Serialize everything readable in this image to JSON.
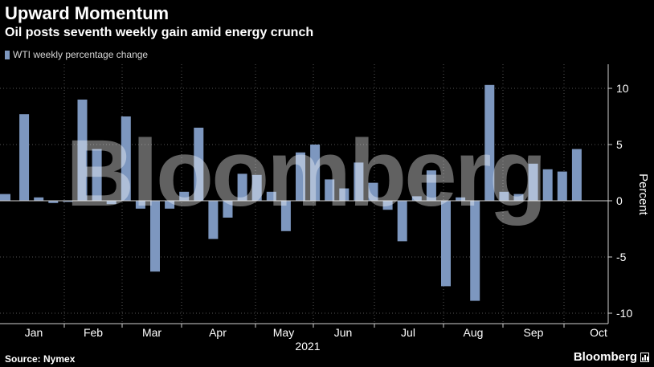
{
  "header": {
    "title": "Upward Momentum",
    "subtitle": "Oil posts seventh weekly gain amid energy crunch"
  },
  "legend": {
    "label": "WTI weekly percentage change"
  },
  "footer": {
    "source": "Source: Nymex",
    "brand": "Bloomberg"
  },
  "watermark": "Bloomberg",
  "colors": {
    "bar": "#7d97bf",
    "background": "#000000",
    "grid": "#555555"
  },
  "chart_data": {
    "type": "bar",
    "title": "Upward Momentum",
    "subtitle": "Oil posts seventh weekly gain amid energy crunch",
    "ylabel": "Percent",
    "xlabel": "2021",
    "ylim": [
      -11,
      12
    ],
    "yticks": [
      10,
      5,
      0,
      -5,
      -10
    ],
    "x_month_labels": [
      "Jan",
      "Feb",
      "Mar",
      "Apr",
      "May",
      "Jun",
      "Jul",
      "Aug",
      "Sep",
      "Oct"
    ],
    "legend_position": "top-left",
    "grid": true,
    "series": [
      {
        "name": "WTI weekly percentage change",
        "values": [
          0.6,
          7.7,
          0.3,
          -0.2,
          -0.1,
          9.0,
          4.6,
          -0.3,
          7.5,
          -0.7,
          -6.3,
          -0.7,
          0.8,
          6.5,
          -3.4,
          -1.5,
          2.4,
          2.3,
          0.8,
          -2.7,
          4.3,
          5.0,
          1.9,
          1.1,
          3.4,
          1.6,
          -0.8,
          -3.6,
          0.4,
          2.7,
          -7.6,
          0.3,
          -8.9,
          10.3,
          0.8,
          0.6,
          3.3,
          2.8,
          2.6,
          4.6
        ]
      }
    ]
  }
}
